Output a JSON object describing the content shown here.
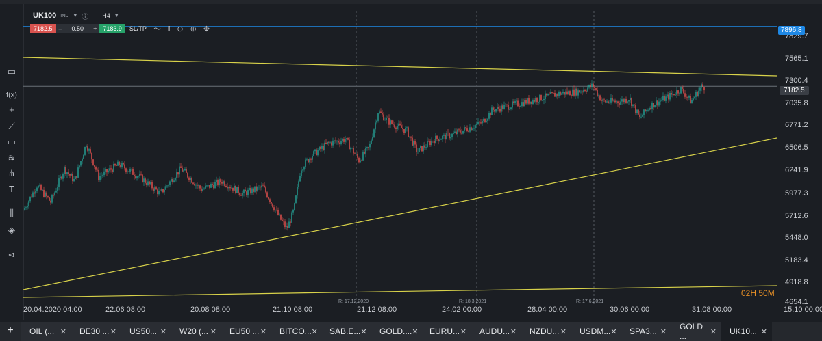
{
  "toolbar": {
    "symbol": "UK100",
    "instrument_type": "IND",
    "timeframe": "H4",
    "sell_price": "7182.5",
    "qty_minus": "–",
    "quantity": "0.50",
    "qty_plus": "+",
    "buy_price": "7183.9",
    "sltp": "SL/TP"
  },
  "chart": {
    "price_ticks": [
      "7829.7",
      "7565.1",
      "7300.4",
      "7035.8",
      "6771.2",
      "6506.5",
      "6241.9",
      "5977.3",
      "5712.6",
      "5448.0",
      "5183.4",
      "4918.8",
      "4654.1"
    ],
    "time_ticks": [
      "20.04.2020 04:00",
      "22.06 08:00",
      "20.08 08:00",
      "21.10 08:00",
      "21.12 08:00",
      "24.02 00:00",
      "28.04 00:00",
      "30.06 00:00",
      "31.08 00:00",
      "15.10 00:00"
    ],
    "rollover_markers": [
      "R: 17.12.2020",
      "R: 18.3.2021",
      "R: 17.6.2021"
    ],
    "alert_price": "7896.8",
    "current_price": "7182.5",
    "countdown_hours": "02H",
    "countdown_minutes": "50M",
    "colors": {
      "up": "#26a69a",
      "down": "#ef5350",
      "trend": "#d8d24a",
      "alert": "#1e88e5"
    }
  },
  "tabs": [
    {
      "label": "OIL (..."
    },
    {
      "label": "DE30 ..."
    },
    {
      "label": "US50..."
    },
    {
      "label": "W20 (..."
    },
    {
      "label": "EU50 ..."
    },
    {
      "label": "BITCO..."
    },
    {
      "label": "SAB.E..."
    },
    {
      "label": "GOLD...."
    },
    {
      "label": "EURU..."
    },
    {
      "label": "AUDU..."
    },
    {
      "label": "NZDU..."
    },
    {
      "label": "USDM..."
    },
    {
      "label": "SPA3..."
    },
    {
      "label": "GOLD ..."
    },
    {
      "label": "UK10..."
    }
  ]
}
